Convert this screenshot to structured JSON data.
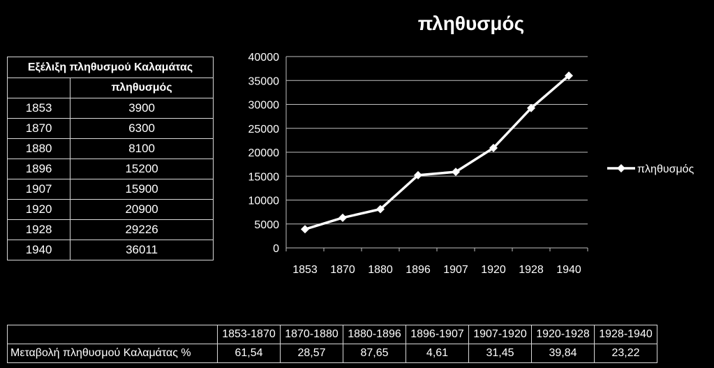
{
  "chart_data": {
    "type": "line",
    "title": "πληθυσμός",
    "categories": [
      "1853",
      "1870",
      "1880",
      "1896",
      "1907",
      "1920",
      "1928",
      "1940"
    ],
    "series": [
      {
        "name": "πληθυσμός",
        "values": [
          3900,
          6300,
          8100,
          15200,
          15900,
          20900,
          29226,
          36011
        ]
      }
    ],
    "ylim": [
      0,
      40000
    ],
    "yticks": [
      0,
      5000,
      10000,
      15000,
      20000,
      25000,
      30000,
      35000,
      40000
    ],
    "grid": true,
    "legend": "right",
    "line_color": "#ffffff",
    "background": "#000000"
  },
  "population_table": {
    "title": "Εξέλιξη πληθυσμού Καλαμάτας",
    "header": "πληθυσμός",
    "rows": [
      {
        "year": "1853",
        "pop": "3900"
      },
      {
        "year": "1870",
        "pop": "6300"
      },
      {
        "year": "1880",
        "pop": "8100"
      },
      {
        "year": "1896",
        "pop": "15200"
      },
      {
        "year": "1907",
        "pop": "15900"
      },
      {
        "year": "1920",
        "pop": "20900"
      },
      {
        "year": "1928",
        "pop": "29226"
      },
      {
        "year": "1940",
        "pop": "36011"
      }
    ]
  },
  "change_table": {
    "label": "Μεταβολή πληθυσμού Καλαμάτας %",
    "periods": [
      "1853-1870",
      "1870-1880",
      "1880-1896",
      "1896-1907",
      "1907-1920",
      "1920-1928",
      "1928-1940"
    ],
    "values": [
      "61,54",
      "28,57",
      "87,65",
      "4,61",
      "31,45",
      "39,84",
      "23,22"
    ]
  }
}
